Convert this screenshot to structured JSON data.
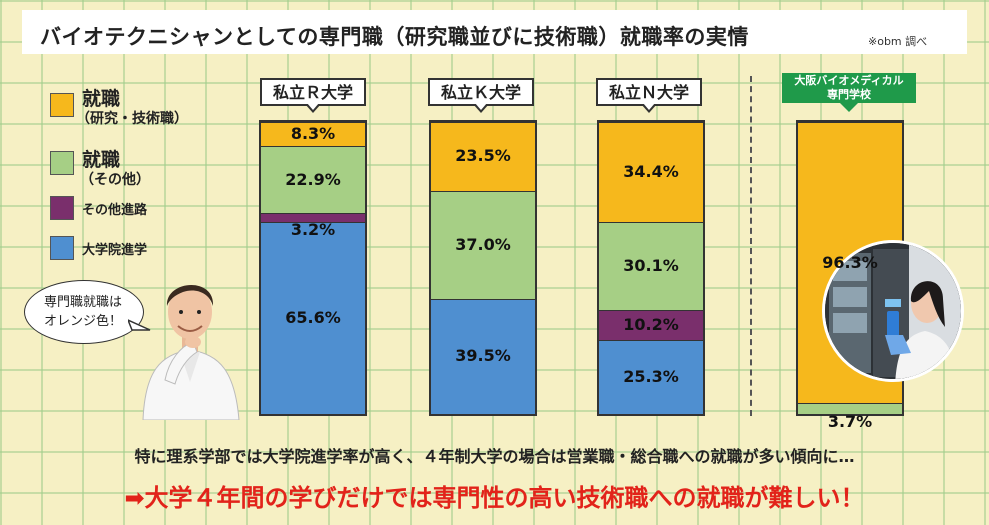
{
  "title": "バイオテクニシャンとしての専門職（研究職並びに技術職）就職率の実情",
  "source": "※obm 調べ",
  "legend": [
    {
      "label": "就職",
      "sub": "（研究・技術職）",
      "color": "#f6b81c"
    },
    {
      "label": "就職",
      "sub": "（その他）",
      "color": "#a6cf85"
    },
    {
      "label": "その他進路",
      "sub": "",
      "color": "#7a2f6c"
    },
    {
      "label": "大学院進学",
      "sub": "",
      "color": "#4f8fd0"
    }
  ],
  "speech_bubble": [
    "専門職就職は",
    "オレンジ色！"
  ],
  "chart_data": {
    "type": "bar",
    "stacked": true,
    "title": "バイオテクニシャンとしての専門職（研究職並びに技術職）就職率の実情",
    "xlabel": "",
    "ylabel": "",
    "ylim": [
      0,
      100
    ],
    "unit": "%",
    "categories": [
      "私立Ｒ大学",
      "私立Ｋ大学",
      "私立Ｎ大学",
      "大阪バイオメディカル専門学校"
    ],
    "category_display": [
      [
        "私立Ｒ大学"
      ],
      [
        "私立Ｋ大学"
      ],
      [
        "私立Ｎ大学"
      ],
      [
        "大阪バイオメディカル",
        "専門学校"
      ]
    ],
    "series": [
      {
        "name": "大学院進学",
        "color": "#4f8fd0",
        "values": [
          65.6,
          39.5,
          25.3,
          0
        ],
        "labels": [
          "65.6%",
          "39.5%",
          "25.3%",
          ""
        ]
      },
      {
        "name": "その他進路",
        "color": "#7a2f6c",
        "values": [
          3.2,
          0,
          10.2,
          0
        ],
        "labels": [
          "3.2%",
          "",
          "10.2%",
          ""
        ]
      },
      {
        "name": "就職（その他）",
        "color": "#a6cf85",
        "values": [
          22.9,
          37.0,
          30.1,
          3.7
        ],
        "labels": [
          "22.9%",
          "37.0%",
          "30.1%",
          "3.7%"
        ]
      },
      {
        "name": "就職（研究・技術職）",
        "color": "#f6b81c",
        "values": [
          8.3,
          23.5,
          34.4,
          96.3
        ],
        "labels": [
          "8.3%",
          "23.5%",
          "34.4%",
          "96.3%"
        ]
      }
    ]
  },
  "footer": {
    "line1": "特に理系学部では大学院進学率が高く、４年制大学の場合は営業職・総合職への就職が多い傾向に…",
    "line2": "➡大学４年間の学びだけでは専門性の高い技術職への就職が難しい！"
  }
}
